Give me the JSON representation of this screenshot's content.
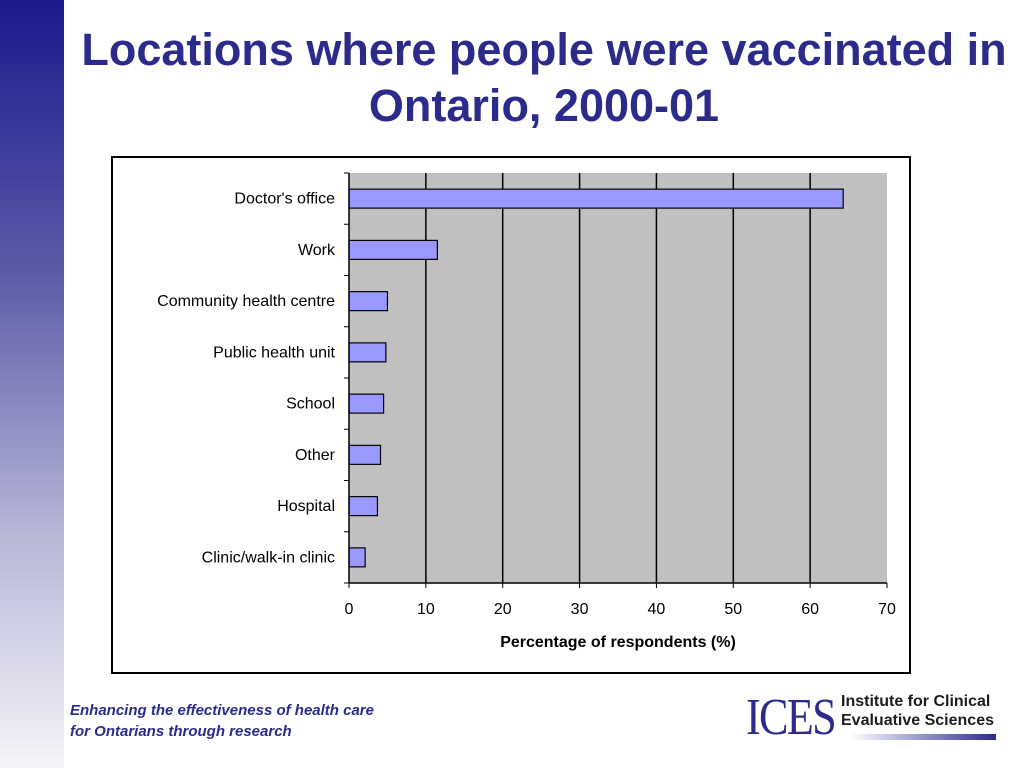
{
  "slide": {
    "title": "Locations where people were vaccinated in Ontario, 2000-01",
    "tagline": [
      "Enhancing the effectiveness of health care",
      "for Ontarians through research"
    ]
  },
  "logo": {
    "mark": "ICES",
    "name_lines": [
      "Institute for Clinical",
      "Evaluative Sciences"
    ]
  },
  "colors": {
    "title": "#2b2b8c",
    "bar_fill": "#9999ff",
    "plot_background": "#c0c0c0"
  },
  "chart_data": {
    "type": "bar",
    "orientation": "horizontal",
    "title": "",
    "categories": [
      "Doctor's office",
      "Work",
      "Community health centre",
      "Public health unit",
      "School",
      "Other",
      "Hospital",
      "Clinic/walk-in clinic"
    ],
    "values": [
      64.3,
      11.5,
      5.0,
      4.8,
      4.5,
      4.1,
      3.7,
      2.1
    ],
    "xlabel": "Percentage of respondents (%)",
    "ylabel": "",
    "xlim": [
      0,
      70
    ],
    "xticks": [
      0,
      10,
      20,
      30,
      40,
      50,
      60,
      70
    ],
    "grid": "vertical",
    "legend": "none"
  }
}
